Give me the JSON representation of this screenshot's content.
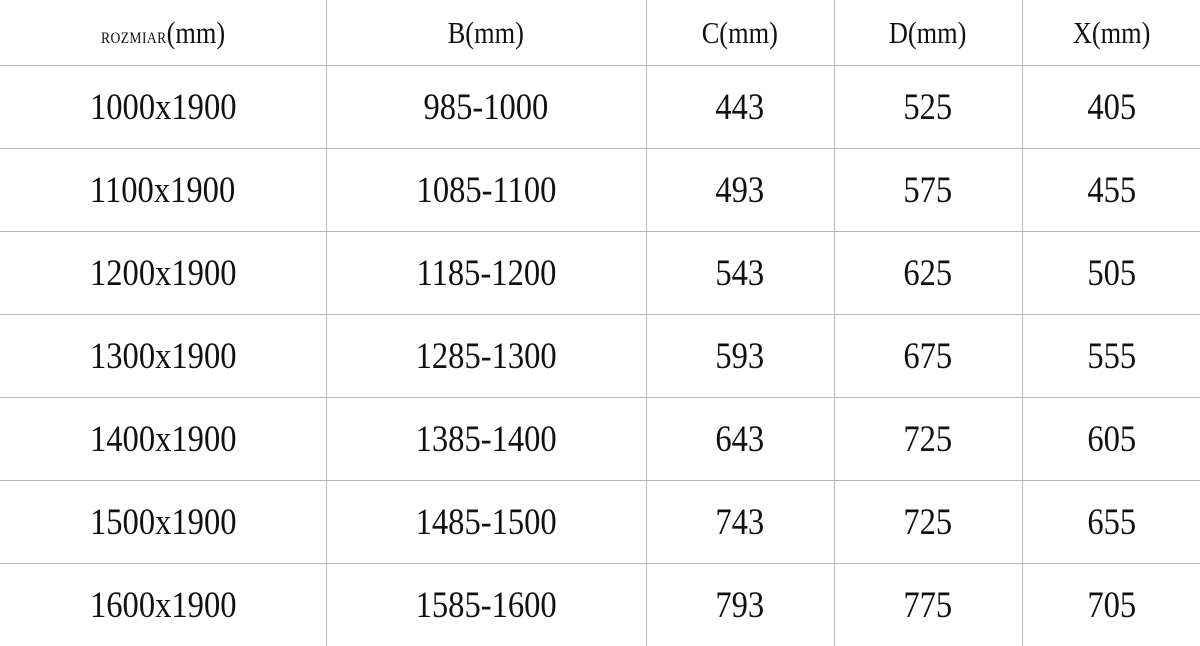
{
  "table": {
    "headers": [
      {
        "prefix": "ROZMIAR",
        "unit": "(mm)"
      },
      {
        "prefix": "B",
        "unit": "(mm)"
      },
      {
        "prefix": "C",
        "unit": "(mm)"
      },
      {
        "prefix": "D",
        "unit": "(mm)"
      },
      {
        "prefix": "X",
        "unit": "(mm)"
      }
    ],
    "rows": [
      [
        "1000x1900",
        "985-1000",
        "443",
        "525",
        "405"
      ],
      [
        "1100x1900",
        "1085-1100",
        "493",
        "575",
        "455"
      ],
      [
        "1200x1900",
        "1185-1200",
        "543",
        "625",
        "505"
      ],
      [
        "1300x1900",
        "1285-1300",
        "593",
        "675",
        "555"
      ],
      [
        "1400x1900",
        "1385-1400",
        "643",
        "725",
        "605"
      ],
      [
        "1500x1900",
        "1485-1500",
        "743",
        "725",
        "655"
      ],
      [
        "1600x1900",
        "1585-1600",
        "793",
        "775",
        "705"
      ]
    ]
  }
}
